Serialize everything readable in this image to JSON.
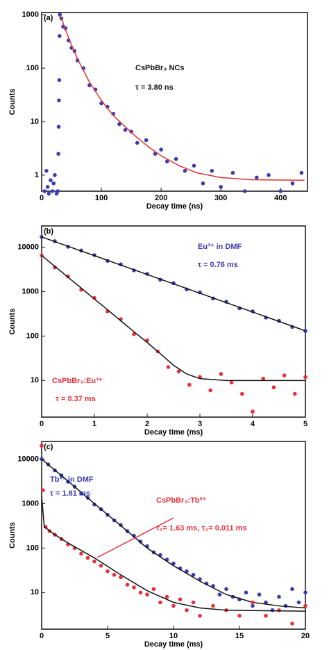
{
  "chart_data": [
    {
      "type": "scatter",
      "panel_label": "(a)",
      "xlabel": "Decay time (ns)",
      "ylabel": "Counts",
      "ylog": true,
      "xlim": [
        0,
        445
      ],
      "ylim": [
        0.5,
        1100
      ],
      "xticks": [
        0,
        100,
        200,
        300,
        400
      ],
      "yticks": [
        1,
        10,
        100,
        1000
      ],
      "annotations": [
        {
          "text": "CsPbBr₃ NCs",
          "color": "#111111"
        },
        {
          "text": "τ = 3.80 ns",
          "color": "#111111"
        }
      ],
      "series": [
        {
          "type": "scatter",
          "color": "#3b3bb0",
          "x": [
            5,
            8,
            10,
            12,
            15,
            18,
            20,
            22,
            25,
            27,
            28,
            28.5,
            29,
            29.5,
            30,
            30.5,
            33,
            36,
            40,
            45,
            50,
            55,
            60,
            70,
            80,
            90,
            100,
            110,
            120,
            130,
            140,
            150,
            160,
            175,
            190,
            200,
            210,
            225,
            240,
            255,
            270,
            285,
            300,
            320,
            340,
            360,
            380,
            400,
            420,
            435
          ],
          "values": [
            0.5,
            1.2,
            0.6,
            0.45,
            0.8,
            0.5,
            0.7,
            1.0,
            0.45,
            0.5,
            2.5,
            8,
            25,
            60,
            400,
            1000,
            850,
            600,
            560,
            330,
            240,
            210,
            140,
            100,
            48,
            40,
            22,
            19,
            14,
            9,
            7,
            6.5,
            4,
            4.5,
            2.5,
            3,
            1.8,
            2,
            1.2,
            1.5,
            0.7,
            1.2,
            0.6,
            1.1,
            0.5,
            0.9,
            1.0,
            0.5,
            0.7,
            1.1
          ]
        },
        {
          "type": "line",
          "color": "#e03030",
          "x": [
            30,
            35,
            40,
            50,
            60,
            70,
            80,
            100,
            120,
            140,
            160,
            180,
            200,
            230,
            260,
            300,
            350,
            440
          ],
          "values": [
            1000,
            750,
            520,
            270,
            150,
            90,
            55,
            25,
            13,
            8,
            5,
            3.3,
            2.3,
            1.5,
            1.1,
            0.9,
            0.82,
            0.8
          ]
        }
      ]
    },
    {
      "type": "scatter",
      "panel_label": "(b)",
      "xlabel": "Decay time (ms)",
      "ylabel": "Counts",
      "ylog": true,
      "xlim": [
        0,
        5
      ],
      "ylim": [
        1.5,
        30000
      ],
      "xticks": [
        0,
        1,
        2,
        3,
        4,
        5
      ],
      "yticks": [
        10,
        100,
        1000,
        10000
      ],
      "annotations": [
        {
          "text": "Eu³⁺ in DMF",
          "color": "#3b3bb0"
        },
        {
          "text": "τ = 0.76 ms",
          "color": "#3b3bb0"
        },
        {
          "text": "CsPbBr₃:Eu³⁺",
          "color": "#e8303a"
        },
        {
          "text": "τ = 0.37 ms",
          "color": "#e8303a"
        }
      ],
      "series": [
        {
          "type": "scatter",
          "color": "#3b3bb0",
          "x": [
            0,
            0.25,
            0.5,
            0.75,
            1,
            1.25,
            1.5,
            1.75,
            2,
            2.25,
            2.5,
            2.75,
            3,
            3.25,
            3.5,
            3.75,
            4,
            4.25,
            4.5,
            4.75,
            5
          ],
          "values": [
            17000,
            13600,
            10200,
            8400,
            6600,
            4900,
            4100,
            3000,
            2500,
            1850,
            1550,
            1120,
            960,
            700,
            590,
            420,
            360,
            260,
            220,
            160,
            130
          ]
        },
        {
          "type": "line",
          "color": "#111111",
          "x": [
            0,
            0.5,
            1,
            1.5,
            2,
            2.5,
            3,
            3.5,
            4,
            4.5,
            5
          ],
          "values": [
            17000,
            10450,
            6430,
            3950,
            2430,
            1494,
            918,
            565,
            347,
            213,
            131
          ]
        },
        {
          "type": "scatter",
          "color": "#e8303a",
          "x": [
            0,
            0.25,
            0.5,
            0.75,
            1,
            1.25,
            1.5,
            1.75,
            2,
            2.2,
            2.4,
            2.6,
            2.8,
            3,
            3.2,
            3.4,
            3.6,
            3.8,
            4,
            4.2,
            4.4,
            4.6,
            4.8,
            5
          ],
          "values": [
            6500,
            3500,
            2200,
            1100,
            720,
            360,
            240,
            110,
            80,
            45,
            20,
            16,
            8,
            12,
            6,
            14,
            9,
            5,
            2,
            11,
            7,
            13,
            5,
            12
          ]
        },
        {
          "type": "line",
          "color": "#111111",
          "x": [
            0,
            0.25,
            0.5,
            0.75,
            1,
            1.25,
            1.5,
            1.75,
            2,
            2.25,
            2.5,
            2.75,
            3,
            3.5,
            4,
            5
          ],
          "values": [
            6500,
            3700,
            2100,
            1200,
            680,
            390,
            220,
            125,
            72,
            40,
            22,
            14,
            11,
            10,
            10,
            10
          ]
        }
      ]
    },
    {
      "type": "scatter",
      "panel_label": "(c)",
      "xlabel": "Decay time (ms)",
      "ylabel": "Counts",
      "ylog": true,
      "xlim": [
        0,
        20
      ],
      "ylim": [
        1.5,
        25000
      ],
      "xticks": [
        0,
        5,
        10,
        15,
        20
      ],
      "yticks": [
        10,
        100,
        1000,
        10000
      ],
      "annotations": [
        {
          "text": "Tb³⁺ in DMF",
          "color": "#3b3bb0"
        },
        {
          "text": "τ = 1.81 ms",
          "color": "#3b3bb0"
        },
        {
          "text": "CsPbBr₃:Tb³⁺",
          "color": "#e8303a"
        },
        {
          "text": "τ₁= 1.63 ms, τ₂= 0.011 ms",
          "color": "#e8303a"
        }
      ],
      "series": [
        {
          "type": "scatter",
          "color": "#3b3bb0",
          "x": [
            0,
            0.5,
            1,
            1.5,
            2,
            2.5,
            3,
            3.5,
            4,
            4.5,
            5,
            5.5,
            6,
            6.5,
            7,
            7.5,
            8,
            8.5,
            9,
            9.5,
            10,
            10.5,
            11,
            11.5,
            12,
            12.5,
            13,
            13.5,
            14,
            14.5,
            15,
            15.5,
            16,
            16.5,
            17,
            17.5,
            18,
            18.5,
            19,
            19.5,
            20
          ],
          "values": [
            10000,
            7600,
            5600,
            4300,
            3100,
            2400,
            1700,
            1350,
            950,
            750,
            560,
            420,
            330,
            240,
            190,
            140,
            110,
            80,
            70,
            55,
            45,
            35,
            30,
            25,
            20,
            16,
            14,
            9,
            12,
            8,
            7,
            10,
            5,
            9,
            6,
            4,
            8,
            5,
            12,
            6,
            10
          ]
        },
        {
          "type": "line",
          "color": "#111111",
          "x": [
            0,
            2,
            4,
            6,
            8,
            10,
            12,
            14,
            16,
            18,
            20
          ],
          "values": [
            10000,
            3200,
            1000,
            320,
            100,
            40,
            18,
            9,
            6,
            5,
            4.5
          ]
        },
        {
          "type": "scatter",
          "color": "#e8303a",
          "x": [
            0,
            0.1,
            0.3,
            0.6,
            1,
            1.5,
            2,
            2.5,
            3,
            3.5,
            4,
            4.5,
            5,
            5.5,
            6,
            6.5,
            7,
            7.5,
            8,
            8.5,
            9,
            9.5,
            10,
            10.5,
            11,
            11.5,
            12,
            13,
            14,
            15,
            16,
            17,
            18,
            19,
            20
          ],
          "values": [
            20000,
            2000,
            300,
            240,
            200,
            160,
            120,
            100,
            75,
            60,
            50,
            40,
            30,
            25,
            22,
            15,
            13,
            10,
            9,
            12,
            6,
            8,
            5,
            7,
            4,
            6,
            3,
            5,
            4,
            3,
            6,
            3,
            4,
            2,
            5
          ]
        },
        {
          "type": "line",
          "color": "#111111",
          "x": [
            0,
            0.2,
            1,
            2,
            4,
            6,
            8,
            10,
            12,
            14,
            20
          ],
          "values": [
            1500,
            300,
            200,
            130,
            60,
            25,
            11,
            6,
            4.5,
            4,
            3.8
          ]
        }
      ]
    }
  ]
}
